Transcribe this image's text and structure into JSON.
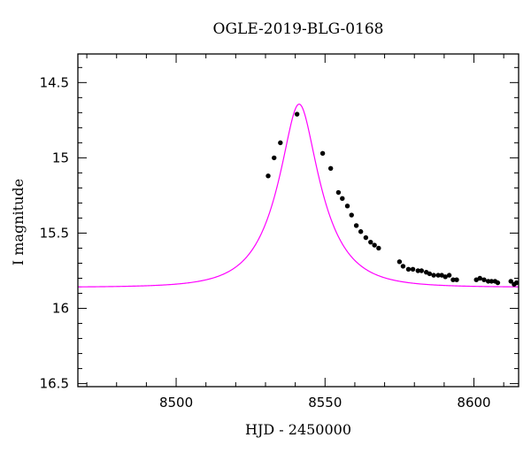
{
  "chart_data": {
    "type": "scatter",
    "title": "OGLE-2019-BLG-0168",
    "xlabel": "HJD - 2450000",
    "ylabel": "I magnitude",
    "xlim": [
      8467,
      8615
    ],
    "ylim": [
      16.52,
      14.31
    ],
    "y_inverted": true,
    "grid": false,
    "x_major_ticks": [
      8500,
      8550,
      8600
    ],
    "x_major_tick_labels": [
      "8500",
      "8550",
      "8600"
    ],
    "x_minor_step": 10,
    "y_major_ticks": [
      14.5,
      15,
      15.5,
      16,
      16.5
    ],
    "y_major_tick_labels": [
      "14.5",
      "15",
      "15.5",
      "16",
      "16.5"
    ],
    "y_minor_step": 0.1,
    "model": {
      "color": "#ff00ff",
      "t0": 8541.3,
      "tE": 14.5,
      "u0": 0.34,
      "baseline_mag": 15.86
    },
    "series": [
      {
        "color": "#000000",
        "x": [
          8530.9,
          8532.9,
          8535.0,
          8540.6,
          8549.2,
          8551.9,
          8554.5,
          8555.8,
          8557.5,
          8558.9,
          8560.5,
          8562.0,
          8563.7,
          8565.3,
          8566.6,
          8568.0,
          8575.0,
          8576.2,
          8578.0,
          8579.5,
          8581.2,
          8582.4,
          8584.0,
          8585.1,
          8586.5,
          8588.0,
          8589.2,
          8590.4,
          8591.7,
          8593.0,
          8594.2,
          8600.8,
          8602.0,
          8603.4,
          8604.8,
          8605.9,
          8607.1,
          8608.0,
          8612.4,
          8613.5,
          8614.3
        ],
        "y": [
          15.12,
          15.0,
          14.9,
          14.71,
          14.97,
          15.07,
          15.23,
          15.27,
          15.32,
          15.38,
          15.45,
          15.49,
          15.53,
          15.56,
          15.58,
          15.6,
          15.69,
          15.72,
          15.74,
          15.74,
          15.75,
          15.75,
          15.76,
          15.77,
          15.78,
          15.78,
          15.78,
          15.79,
          15.78,
          15.81,
          15.81,
          15.81,
          15.8,
          15.81,
          15.82,
          15.82,
          15.82,
          15.83,
          15.82,
          15.84,
          15.83
        ]
      }
    ]
  }
}
